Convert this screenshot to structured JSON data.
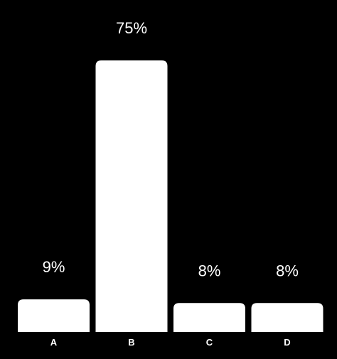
{
  "chart_data": {
    "type": "bar",
    "categories": [
      "A",
      "B",
      "C",
      "D"
    ],
    "values": [
      9,
      75,
      8,
      8
    ],
    "data_labels": [
      "9%",
      "75%",
      "8%",
      "8%"
    ],
    "title": "",
    "xlabel": "",
    "ylabel": "",
    "ylim": [
      0,
      75
    ],
    "grid": false,
    "legend": "none",
    "colors": {
      "background": "#000000",
      "bar": "#ffffff",
      "text": "#ffffff"
    }
  }
}
